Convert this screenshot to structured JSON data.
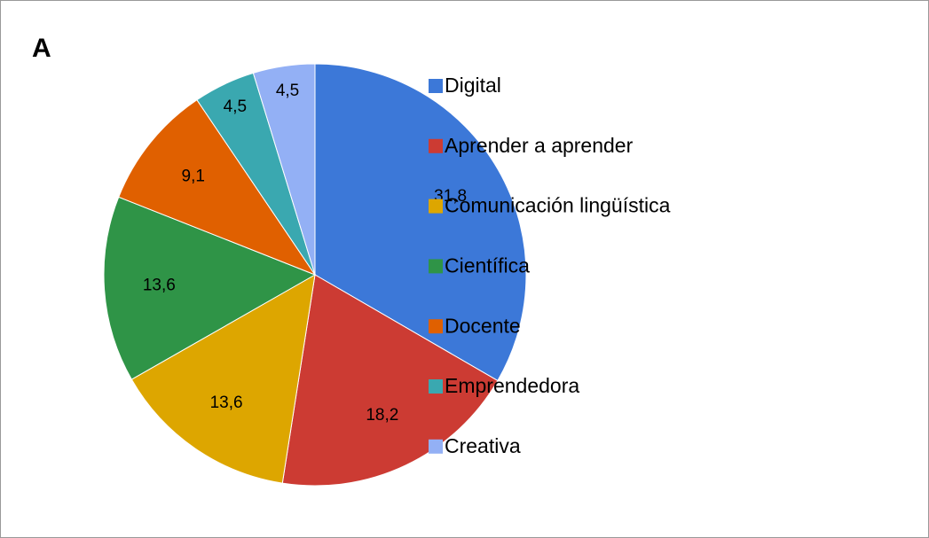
{
  "chart_data": {
    "type": "pie",
    "title": "A",
    "categories": [
      "Digital",
      "Aprender a aprender",
      "Comunicación lingüística",
      "Científica",
      "Docente",
      "Emprendedora",
      "Creativa"
    ],
    "values": [
      31.8,
      18.2,
      13.6,
      13.6,
      9.1,
      4.5,
      4.5
    ],
    "value_labels": [
      "31,8",
      "18,2",
      "13,6",
      "13,6",
      "9,1",
      "4,5",
      "4,5"
    ],
    "colors": [
      "#3c78d8",
      "#cc3b33",
      "#dda600",
      "#2f9447",
      "#e06000",
      "#3aa8b0",
      "#93b0f5"
    ],
    "legend": "right"
  }
}
